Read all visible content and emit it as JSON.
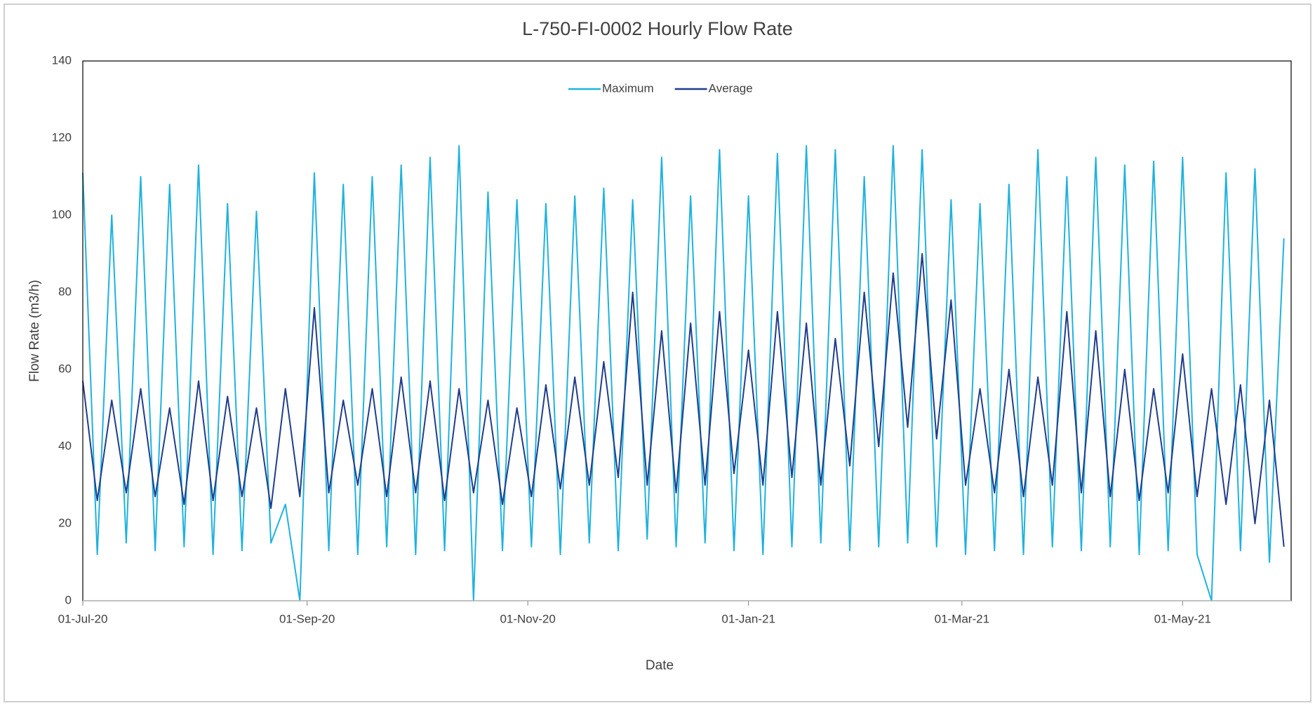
{
  "chart_data": {
    "type": "line",
    "title": "L-750-FI-0002 Hourly Flow Rate",
    "xlabel": "Date",
    "ylabel": "Flow Rate (m3/h)",
    "legend": "top",
    "grid": false,
    "x": [
      "2020-07-01",
      "2020-07-05",
      "2020-07-09",
      "2020-07-13",
      "2020-07-17",
      "2020-07-21",
      "2020-07-25",
      "2020-07-29",
      "2020-08-02",
      "2020-08-06",
      "2020-08-10",
      "2020-08-14",
      "2020-08-18",
      "2020-08-22",
      "2020-08-26",
      "2020-08-30",
      "2020-09-03",
      "2020-09-07",
      "2020-09-11",
      "2020-09-15",
      "2020-09-19",
      "2020-09-23",
      "2020-09-27",
      "2020-10-01",
      "2020-10-05",
      "2020-10-09",
      "2020-10-13",
      "2020-10-17",
      "2020-10-21",
      "2020-10-25",
      "2020-10-29",
      "2020-11-02",
      "2020-11-06",
      "2020-11-10",
      "2020-11-14",
      "2020-11-18",
      "2020-11-22",
      "2020-11-26",
      "2020-11-30",
      "2020-12-04",
      "2020-12-08",
      "2020-12-12",
      "2020-12-16",
      "2020-12-20",
      "2020-12-24",
      "2020-12-28",
      "2021-01-01",
      "2021-01-05",
      "2021-01-09",
      "2021-01-13",
      "2021-01-17",
      "2021-01-21",
      "2021-01-25",
      "2021-01-29",
      "2021-02-02",
      "2021-02-06",
      "2021-02-10",
      "2021-02-14",
      "2021-02-18",
      "2021-02-22",
      "2021-02-26",
      "2021-03-02",
      "2021-03-06",
      "2021-03-10",
      "2021-03-14",
      "2021-03-18",
      "2021-03-22",
      "2021-03-26",
      "2021-03-30",
      "2021-04-03",
      "2021-04-07",
      "2021-04-11",
      "2021-04-15",
      "2021-04-19",
      "2021-04-23",
      "2021-04-27",
      "2021-05-01",
      "2021-05-05",
      "2021-05-09",
      "2021-05-13",
      "2021-05-17",
      "2021-05-21",
      "2021-05-25",
      "2021-05-29"
    ],
    "series": [
      {
        "name": "Maximum",
        "color": "#1fb2de",
        "values": [
          111,
          12,
          100,
          15,
          110,
          13,
          108,
          14,
          113,
          12,
          103,
          13,
          101,
          15,
          25,
          0,
          111,
          13,
          108,
          12,
          110,
          14,
          113,
          12,
          115,
          13,
          118,
          0,
          106,
          13,
          104,
          14,
          103,
          12,
          105,
          15,
          107,
          13,
          104,
          16,
          115,
          14,
          105,
          15,
          117,
          13,
          105,
          12,
          116,
          14,
          118,
          15,
          117,
          13,
          110,
          14,
          118,
          15,
          117,
          14,
          104,
          12,
          103,
          13,
          108,
          12,
          117,
          14,
          110,
          13,
          115,
          14,
          113,
          12,
          114,
          13,
          115,
          12,
          0,
          111,
          13,
          112,
          10,
          94
        ]
      },
      {
        "name": "Average",
        "color": "#203d8c",
        "values": [
          57,
          26,
          52,
          28,
          55,
          27,
          50,
          25,
          57,
          26,
          53,
          27,
          50,
          24,
          55,
          27,
          76,
          28,
          52,
          30,
          55,
          27,
          58,
          28,
          57,
          26,
          55,
          28,
          52,
          25,
          50,
          27,
          56,
          29,
          58,
          30,
          62,
          32,
          80,
          30,
          70,
          28,
          72,
          30,
          75,
          33,
          65,
          30,
          75,
          32,
          72,
          30,
          68,
          35,
          80,
          40,
          85,
          45,
          90,
          42,
          78,
          30,
          55,
          28,
          60,
          27,
          58,
          30,
          75,
          28,
          70,
          27,
          60,
          26,
          55,
          28,
          64,
          27,
          55,
          25,
          56,
          20,
          52,
          14
        ]
      }
    ],
    "xlim": [
      "2020-07-01",
      "2021-05-31"
    ],
    "xticks": [
      {
        "value": "2020-07-01",
        "label": "01-Jul-20"
      },
      {
        "value": "2020-09-01",
        "label": "01-Sep-20"
      },
      {
        "value": "2020-11-01",
        "label": "01-Nov-20"
      },
      {
        "value": "2021-01-01",
        "label": "01-Jan-21"
      },
      {
        "value": "2021-03-01",
        "label": "01-Mar-21"
      },
      {
        "value": "2021-05-01",
        "label": "01-May-21"
      }
    ],
    "ylim": [
      0,
      140
    ],
    "yticks": [
      0,
      20,
      40,
      60,
      80,
      100,
      120,
      140
    ]
  }
}
